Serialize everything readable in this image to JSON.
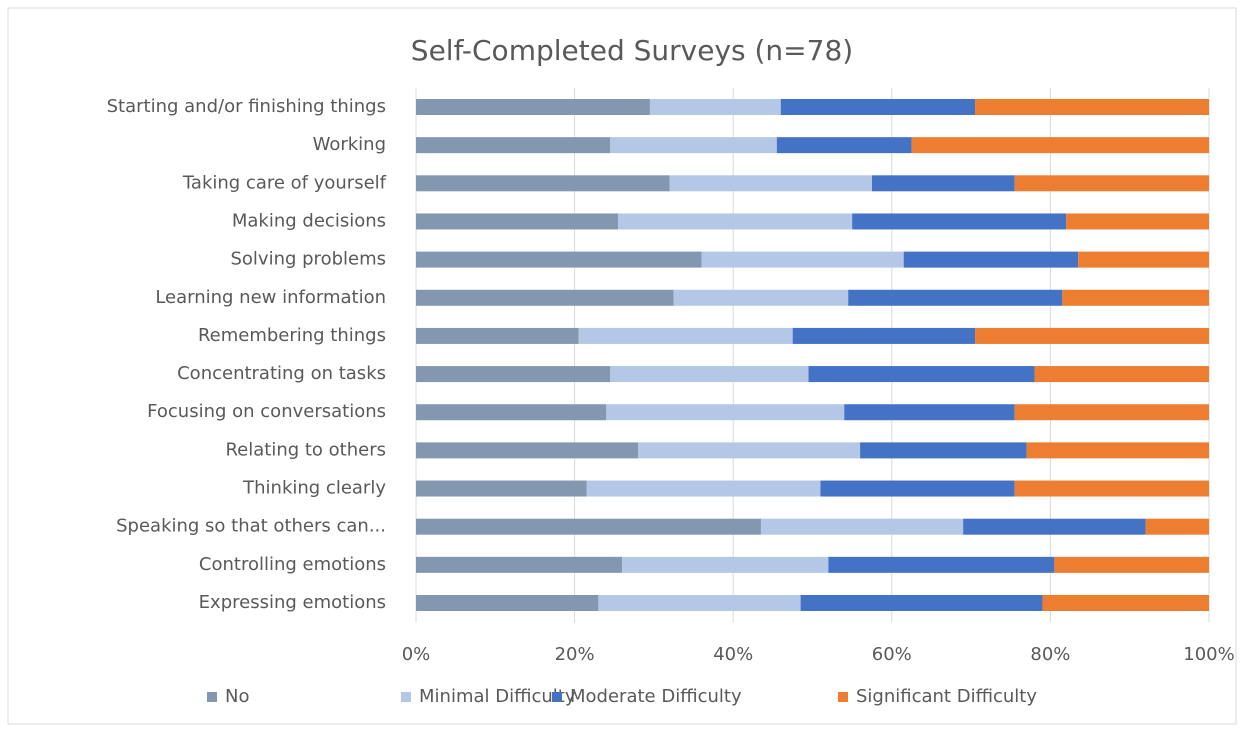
{
  "chart_data": {
    "type": "stacked_barh",
    "title": "Self-Completed Surveys (n=78)",
    "categories": [
      "Starting and/or finishing things",
      "Working",
      "Taking care of yourself",
      "Making decisions",
      "Solving problems",
      "Learning new information",
      "Remembering things",
      "Concentrating on tasks",
      "Focusing on conversations",
      "Relating to others",
      "Thinking clearly",
      "Speaking so that others can...",
      "Controlling emotions",
      "Expressing emotions"
    ],
    "series": [
      {
        "name": "No",
        "color": "#8497b0",
        "values": [
          29.5,
          24.5,
          32,
          25.5,
          36,
          32.5,
          20.5,
          24.5,
          24,
          28,
          21.5,
          43.5,
          26,
          23
        ]
      },
      {
        "name": "Minimal Difficulty",
        "color": "#b4c7e7",
        "values": [
          16.5,
          21,
          25.5,
          29.5,
          25.5,
          22,
          27,
          25,
          30,
          28,
          29.5,
          25.5,
          26,
          25.5
        ]
      },
      {
        "name": "Moderate Difficulty",
        "color": "#4472c4",
        "values": [
          24.5,
          17,
          18,
          27,
          22,
          27,
          23,
          28.5,
          21.5,
          21,
          24.5,
          23,
          28.5,
          30.5
        ]
      },
      {
        "name": "Significant Difficulty",
        "color": "#ed7d31",
        "values": [
          29.5,
          37.5,
          24.5,
          18,
          16.5,
          18.5,
          29.5,
          22,
          24.5,
          23,
          24.5,
          8,
          19.5,
          21
        ]
      }
    ],
    "xlim": [
      0,
      100
    ],
    "xticks": [
      {
        "value": 0,
        "label": "0%"
      },
      {
        "value": 20,
        "label": "20%"
      },
      {
        "value": 40,
        "label": "40%"
      },
      {
        "value": 60,
        "label": "60%"
      },
      {
        "value": 80,
        "label": "80%"
      },
      {
        "value": 100,
        "label": "100%"
      }
    ],
    "grid": true,
    "legend": "bottom"
  }
}
